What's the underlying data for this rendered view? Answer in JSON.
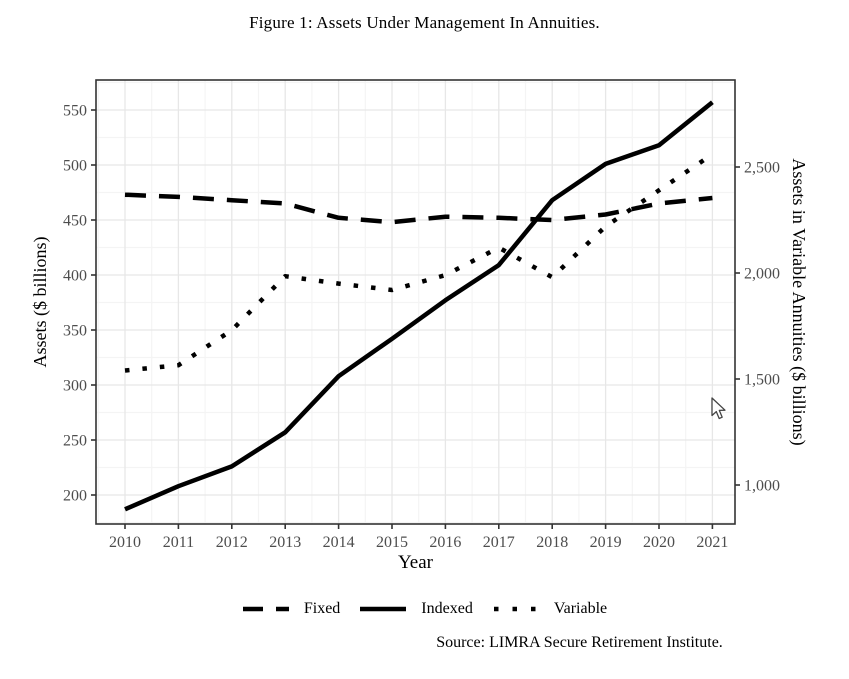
{
  "figure": {
    "title": "Figure 1: Assets Under Management In Annuities.",
    "source": "Source: LIMRA Secure Retirement Institute."
  },
  "chart_data": {
    "type": "line",
    "title": "Figure 1: Assets Under Management In Annuities.",
    "xlabel": "Year",
    "ylabel_left": "Assets ($ billions)",
    "ylabel_right": "Assets in Variable Annuities ($ billions)",
    "x": [
      2010,
      2011,
      2012,
      2013,
      2014,
      2015,
      2016,
      2017,
      2018,
      2019,
      2020,
      2021
    ],
    "series": [
      {
        "name": "Fixed",
        "axis": "left",
        "style": "dashed",
        "values": [
          473,
          471,
          468,
          465,
          452,
          448,
          453,
          452,
          450,
          455,
          465,
          470
        ]
      },
      {
        "name": "Indexed",
        "axis": "left",
        "style": "solid",
        "values": [
          187,
          208,
          226,
          257,
          308,
          342,
          377,
          409,
          468,
          501,
          518,
          557
        ]
      },
      {
        "name": "Variable",
        "axis": "right",
        "style": "dotted",
        "values": [
          1540,
          1565,
          1730,
          1985,
          1950,
          1920,
          1990,
          2120,
          1980,
          2220,
          2390,
          2560
        ]
      }
    ],
    "left_axis": {
      "ticks": [
        200,
        250,
        300,
        350,
        400,
        450,
        500,
        550
      ],
      "tick_labels": [
        "200",
        "250",
        "300",
        "350",
        "400",
        "450",
        "500",
        "550"
      ]
    },
    "right_axis": {
      "ticks": [
        1000,
        1500,
        2000,
        2500
      ],
      "tick_labels": [
        "1,000",
        "1,500",
        "2,000",
        "2,500"
      ]
    },
    "x_tick_labels": [
      "2010",
      "2011",
      "2012",
      "2013",
      "2014",
      "2015",
      "2016",
      "2017",
      "2018",
      "2019",
      "2020",
      "2021"
    ],
    "legend": [
      {
        "label": "Fixed",
        "style": "dashed"
      },
      {
        "label": "Indexed",
        "style": "solid"
      },
      {
        "label": "Variable",
        "style": "dotted"
      }
    ],
    "legend_position": "bottom",
    "grid": true,
    "colors": {
      "line": "#000000",
      "grid_major": "#e7e7e7",
      "grid_minor": "#f4f4f4",
      "tick_label": "#4d4d4d",
      "panel_border": "#333333"
    }
  }
}
